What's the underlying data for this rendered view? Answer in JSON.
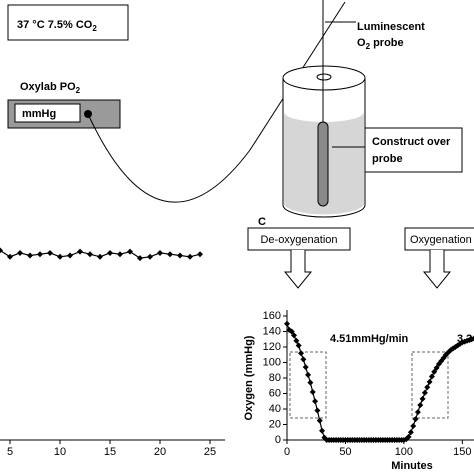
{
  "diagram": {
    "env_label": {
      "text": "37 °C 7.5% CO",
      "sub": "2"
    },
    "meter_label": {
      "text": "Oxylab PO",
      "sub": "2"
    },
    "meter_unit": "mmHg",
    "probe_label": {
      "line1": "Luminescent",
      "line2": "O",
      "sub": "2",
      "line2_rest": " probe"
    },
    "construct_label": {
      "line1": "Construct over",
      "line2": "probe"
    }
  },
  "chart_data": [
    {
      "type": "line",
      "color": "#000000",
      "x": [
        4,
        5,
        6,
        7,
        8,
        9,
        10,
        11,
        12,
        13,
        14,
        15,
        16,
        17,
        18,
        19,
        20,
        21,
        22,
        23,
        24
      ],
      "values": [
        148,
        143,
        146,
        144,
        145,
        146,
        143,
        144,
        147,
        145,
        143,
        146,
        145,
        147,
        142,
        143,
        146,
        145,
        144,
        143,
        145
      ],
      "xlim": [
        4,
        25.5
      ],
      "ylim": [
        0,
        160
      ],
      "xticks": [
        5,
        10,
        15,
        20,
        25
      ]
    },
    {
      "type": "line",
      "color": "#000000",
      "panel_label": "C",
      "xlabel": "Minutes",
      "ylabel": "Oxygen (mmHg)",
      "annotations": {
        "deoxy_box": "De-oxygenation",
        "oxy_box": "Oxygenation",
        "deoxy_rate": "4.51mmHg/min",
        "oxy_rate": "3.2"
      },
      "x": [
        0,
        2,
        4,
        6,
        8,
        10,
        12,
        14,
        16,
        18,
        20,
        22,
        24,
        26,
        28,
        30,
        32,
        34,
        36,
        38,
        40,
        42,
        44,
        46,
        48,
        50,
        52,
        54,
        56,
        58,
        60,
        62,
        64,
        66,
        68,
        70,
        72,
        74,
        76,
        78,
        80,
        82,
        84,
        86,
        88,
        90,
        92,
        94,
        96,
        98,
        100,
        102,
        104,
        106,
        108,
        110,
        112,
        114,
        116,
        118,
        120,
        122,
        124,
        126,
        128,
        130,
        132,
        134,
        136,
        138,
        140,
        142,
        144,
        146,
        148,
        150,
        152,
        154,
        156,
        158,
        160
      ],
      "values": [
        150,
        142,
        140,
        135,
        128,
        122,
        112,
        104,
        94,
        84,
        74,
        62,
        50,
        38,
        25,
        12,
        3,
        0,
        0,
        0,
        0,
        0,
        0,
        0,
        0,
        0,
        0,
        0,
        0,
        0,
        0,
        0,
        0,
        0,
        0,
        0,
        0,
        0,
        0,
        0,
        0,
        0,
        0,
        0,
        0,
        0,
        0,
        0,
        0,
        0,
        0,
        1,
        4,
        10,
        18,
        27,
        36,
        45,
        53,
        61,
        68,
        75,
        82,
        88,
        93,
        98,
        102,
        106,
        110,
        113,
        116,
        118,
        120,
        122,
        124,
        126,
        127,
        128,
        129,
        130,
        131
      ],
      "xlim": [
        0,
        160
      ],
      "ylim": [
        0,
        160
      ],
      "xticks": [
        0,
        50,
        100,
        150
      ],
      "yticks": [
        0,
        20,
        40,
        60,
        80,
        100,
        120,
        140,
        160
      ]
    }
  ]
}
